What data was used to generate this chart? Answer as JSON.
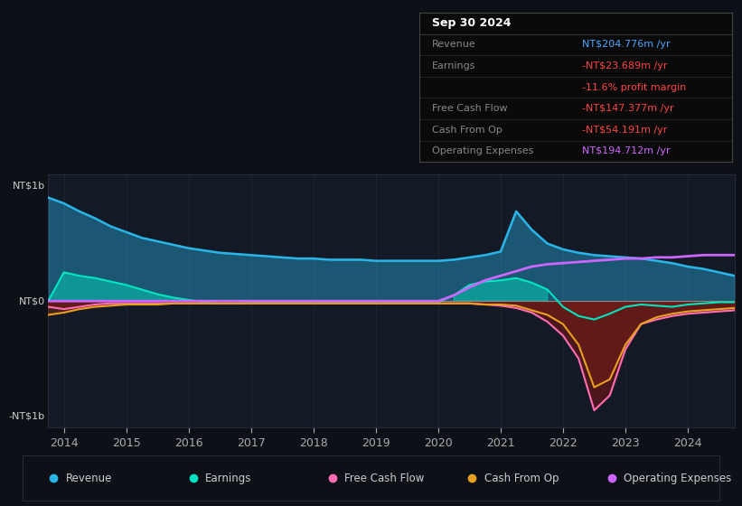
{
  "bg_color": "#0d1117",
  "plot_bg_color": "#131a25",
  "years": [
    2013.75,
    2014,
    2014.25,
    2014.5,
    2014.75,
    2015,
    2015.25,
    2015.5,
    2015.75,
    2016,
    2016.25,
    2016.5,
    2016.75,
    2017,
    2017.25,
    2017.5,
    2017.75,
    2018,
    2018.25,
    2018.5,
    2018.75,
    2019,
    2019.25,
    2019.5,
    2019.75,
    2020,
    2020.25,
    2020.5,
    2020.75,
    2021,
    2021.25,
    2021.5,
    2021.75,
    2022,
    2022.25,
    2022.5,
    2022.75,
    2023,
    2023.25,
    2023.5,
    2023.75,
    2024,
    2024.25,
    2024.5,
    2024.75
  ],
  "revenue": [
    0.9,
    0.85,
    0.78,
    0.72,
    0.65,
    0.6,
    0.55,
    0.52,
    0.49,
    0.46,
    0.44,
    0.42,
    0.41,
    0.4,
    0.39,
    0.38,
    0.37,
    0.37,
    0.36,
    0.36,
    0.36,
    0.35,
    0.35,
    0.35,
    0.35,
    0.35,
    0.36,
    0.38,
    0.4,
    0.43,
    0.78,
    0.62,
    0.5,
    0.45,
    0.42,
    0.4,
    0.39,
    0.38,
    0.37,
    0.35,
    0.33,
    0.3,
    0.28,
    0.25,
    0.22
  ],
  "earnings": [
    0.0,
    0.25,
    0.22,
    0.2,
    0.17,
    0.14,
    0.1,
    0.06,
    0.03,
    0.01,
    -0.01,
    -0.02,
    -0.02,
    -0.01,
    -0.01,
    -0.01,
    -0.01,
    -0.01,
    -0.01,
    -0.01,
    -0.01,
    -0.01,
    -0.01,
    -0.01,
    -0.01,
    -0.01,
    0.05,
    0.14,
    0.17,
    0.18,
    0.2,
    0.16,
    0.1,
    -0.05,
    -0.13,
    -0.16,
    -0.11,
    -0.05,
    -0.03,
    -0.04,
    -0.05,
    -0.03,
    -0.02,
    -0.01,
    -0.01
  ],
  "free_cash_flow": [
    -0.05,
    -0.07,
    -0.05,
    -0.03,
    -0.02,
    -0.02,
    -0.02,
    -0.02,
    -0.02,
    -0.02,
    -0.02,
    -0.02,
    -0.02,
    -0.02,
    -0.02,
    -0.02,
    -0.02,
    -0.02,
    -0.02,
    -0.02,
    -0.02,
    -0.02,
    -0.02,
    -0.02,
    -0.02,
    -0.02,
    -0.02,
    -0.02,
    -0.03,
    -0.04,
    -0.06,
    -0.1,
    -0.18,
    -0.3,
    -0.5,
    -0.95,
    -0.82,
    -0.42,
    -0.2,
    -0.16,
    -0.13,
    -0.11,
    -0.1,
    -0.09,
    -0.08
  ],
  "cash_from_op": [
    -0.12,
    -0.1,
    -0.07,
    -0.05,
    -0.04,
    -0.03,
    -0.03,
    -0.03,
    -0.02,
    -0.02,
    -0.02,
    -0.02,
    -0.02,
    -0.02,
    -0.02,
    -0.02,
    -0.02,
    -0.02,
    -0.02,
    -0.02,
    -0.02,
    -0.02,
    -0.02,
    -0.02,
    -0.02,
    -0.02,
    -0.02,
    -0.02,
    -0.03,
    -0.03,
    -0.04,
    -0.08,
    -0.12,
    -0.2,
    -0.38,
    -0.75,
    -0.68,
    -0.38,
    -0.2,
    -0.14,
    -0.11,
    -0.09,
    -0.08,
    -0.07,
    -0.06
  ],
  "operating_expenses": [
    0.0,
    0.0,
    0.0,
    0.0,
    0.0,
    0.0,
    0.0,
    0.0,
    0.0,
    0.0,
    0.0,
    0.0,
    0.0,
    0.0,
    0.0,
    0.0,
    0.0,
    0.0,
    0.0,
    0.0,
    0.0,
    0.0,
    0.0,
    0.0,
    0.0,
    0.0,
    0.05,
    0.12,
    0.18,
    0.22,
    0.26,
    0.3,
    0.32,
    0.33,
    0.34,
    0.35,
    0.36,
    0.37,
    0.37,
    0.38,
    0.38,
    0.39,
    0.4,
    0.4,
    0.4
  ],
  "revenue_color": "#29b5e8",
  "earnings_color": "#00e5c0",
  "free_cash_flow_color": "#ff6eb4",
  "cash_from_op_color": "#e8a020",
  "operating_expenses_color": "#cc66ff",
  "zero_line_color": "#888888",
  "grid_color": "#2a3040",
  "text_color": "#aaaaaa",
  "axis_label_color": "#cccccc",
  "xtick_labels": [
    "2014",
    "2015",
    "2016",
    "2017",
    "2018",
    "2019",
    "2020",
    "2021",
    "2022",
    "2023",
    "2024"
  ],
  "xtick_positions": [
    2014,
    2015,
    2016,
    2017,
    2018,
    2019,
    2020,
    2021,
    2022,
    2023,
    2024
  ],
  "ylim": [
    -1.1,
    1.1
  ],
  "info_title": "Sep 30 2024",
  "info_rows": [
    {
      "label": "Revenue",
      "value": "NT$204.776m /yr",
      "label_color": "#888888",
      "value_color": "#4da6ff"
    },
    {
      "label": "Earnings",
      "value": "-NT$23.689m /yr",
      "label_color": "#888888",
      "value_color": "#ff4444"
    },
    {
      "label": "",
      "value": "-11.6% profit margin",
      "label_color": "#888888",
      "value_color": "#ff4444"
    },
    {
      "label": "Free Cash Flow",
      "value": "-NT$147.377m /yr",
      "label_color": "#888888",
      "value_color": "#ff4444"
    },
    {
      "label": "Cash From Op",
      "value": "-NT$54.191m /yr",
      "label_color": "#888888",
      "value_color": "#ff4444"
    },
    {
      "label": "Operating Expenses",
      "value": "NT$194.712m /yr",
      "label_color": "#888888",
      "value_color": "#cc66ff"
    }
  ],
  "legend_items": [
    {
      "label": "Revenue",
      "color": "#29b5e8"
    },
    {
      "label": "Earnings",
      "color": "#00e5c0"
    },
    {
      "label": "Free Cash Flow",
      "color": "#ff6eb4"
    },
    {
      "label": "Cash From Op",
      "color": "#e8a020"
    },
    {
      "label": "Operating Expenses",
      "color": "#cc66ff"
    }
  ]
}
